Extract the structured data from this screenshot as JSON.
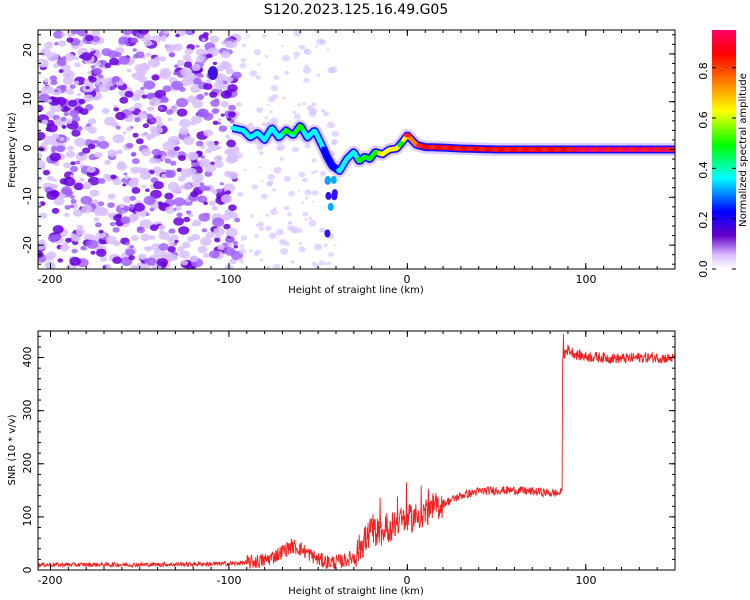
{
  "title": "S120.2023.125.16.49.G05",
  "charts": {
    "spectrogram": {
      "xlabel": "Height of straight line (km)",
      "ylabel": "Frequency (Hz)",
      "xticks": [
        "-200",
        "-100",
        "0",
        "100"
      ],
      "yticks": [
        "20",
        "10",
        "0",
        "-10",
        "-20"
      ]
    },
    "snr": {
      "xlabel": "Height of straight line (km)",
      "ylabel": "SNR (10 * v/v)",
      "xticks": [
        "-200",
        "-100",
        "0",
        "100"
      ],
      "yticks": [
        "400",
        "300",
        "200",
        "100",
        "0"
      ]
    },
    "colorbar": {
      "label": "Normalized spectral amplitude",
      "ticks": [
        "0.0",
        "0.2",
        "0.4",
        "0.6",
        "0.8"
      ]
    }
  },
  "chart_data": [
    {
      "type": "heatmap",
      "title": "S120.2023.125.16.49.G05",
      "xlabel": "Height of straight line (km)",
      "ylabel": "Frequency (Hz)",
      "xlim": [
        -207,
        150
      ],
      "ylim": [
        -25,
        25
      ],
      "xticks": [
        -200,
        -100,
        0,
        100
      ],
      "yticks": [
        -20,
        -10,
        0,
        10,
        20
      ],
      "ridge": {
        "x": [
          -98,
          -92,
          -88,
          -84,
          -80,
          -76,
          -72,
          -68,
          -64,
          -60,
          -56,
          -52,
          -48,
          -45,
          -42,
          -38,
          -34,
          -30,
          -27,
          -24,
          -21,
          -18,
          -14,
          -10,
          -6,
          -3,
          0,
          5,
          10,
          20,
          30,
          50,
          70,
          85,
          100,
          120,
          150
        ],
        "freq": [
          4.5,
          4.0,
          2.5,
          3.5,
          2.0,
          4.5,
          2.5,
          4.0,
          3.0,
          5.0,
          2.5,
          4.0,
          1.0,
          -1.5,
          -3.5,
          -4.5,
          -2.0,
          -0.5,
          -2.5,
          -1.5,
          -2.0,
          -0.5,
          -1.0,
          0.0,
          0.2,
          1.5,
          3.0,
          1.0,
          0.5,
          0.4,
          0.2,
          0.0,
          0.0,
          0.0,
          0.0,
          0.0,
          0.0
        ],
        "amplitude": [
          0.25,
          0.3,
          0.35,
          0.3,
          0.35,
          0.35,
          0.3,
          0.4,
          0.35,
          0.4,
          0.3,
          0.35,
          0.25,
          0.2,
          0.2,
          0.25,
          0.3,
          0.3,
          0.4,
          0.45,
          0.4,
          0.45,
          0.5,
          0.55,
          0.5,
          0.45,
          0.6,
          0.7,
          0.75,
          0.8,
          0.75,
          0.75,
          0.8,
          0.8,
          0.85,
          0.85,
          0.9
        ]
      },
      "noise_region_x": [
        -207,
        -95
      ]
    },
    {
      "type": "heatmap_colorbar",
      "label": "Normalized spectral amplitude",
      "range": [
        0.0,
        0.95
      ],
      "ticks": [
        0.0,
        0.2,
        0.4,
        0.6,
        0.8
      ],
      "colormap": [
        "#ffffff",
        "#6600cc",
        "#0000ff",
        "#00ffff",
        "#00ff00",
        "#ffff00",
        "#ff8000",
        "#ff0000",
        "#ff0066"
      ]
    },
    {
      "type": "line",
      "xlabel": "Height of straight line (km)",
      "ylabel": "SNR (10 * v/v)",
      "xlim": [
        -207,
        150
      ],
      "ylim": [
        0,
        450
      ],
      "xticks": [
        -200,
        -100,
        0,
        100
      ],
      "yticks": [
        0,
        100,
        200,
        300,
        400
      ],
      "color": "#ee2222",
      "series": [
        {
          "x": [
            -207,
            -180,
            -150,
            -120,
            -100,
            -90,
            -80,
            -75,
            -70,
            -65,
            -60,
            -55,
            -50,
            -45,
            -40,
            -35,
            -30,
            -25,
            -20,
            -15,
            -10,
            -5,
            0,
            5,
            10,
            15,
            20,
            30,
            40,
            50,
            60,
            70,
            80,
            86,
            87,
            90,
            95,
            100,
            110,
            120,
            130,
            140,
            150
          ],
          "y": [
            10,
            10,
            10,
            11,
            12,
            14,
            18,
            25,
            35,
            45,
            40,
            30,
            20,
            15,
            15,
            18,
            25,
            50,
            75,
            70,
            80,
            90,
            95,
            100,
            110,
            118,
            125,
            140,
            148,
            150,
            150,
            148,
            145,
            145,
            400,
            415,
            405,
            402,
            400,
            398,
            400,
            400,
            398
          ]
        }
      ]
    }
  ]
}
